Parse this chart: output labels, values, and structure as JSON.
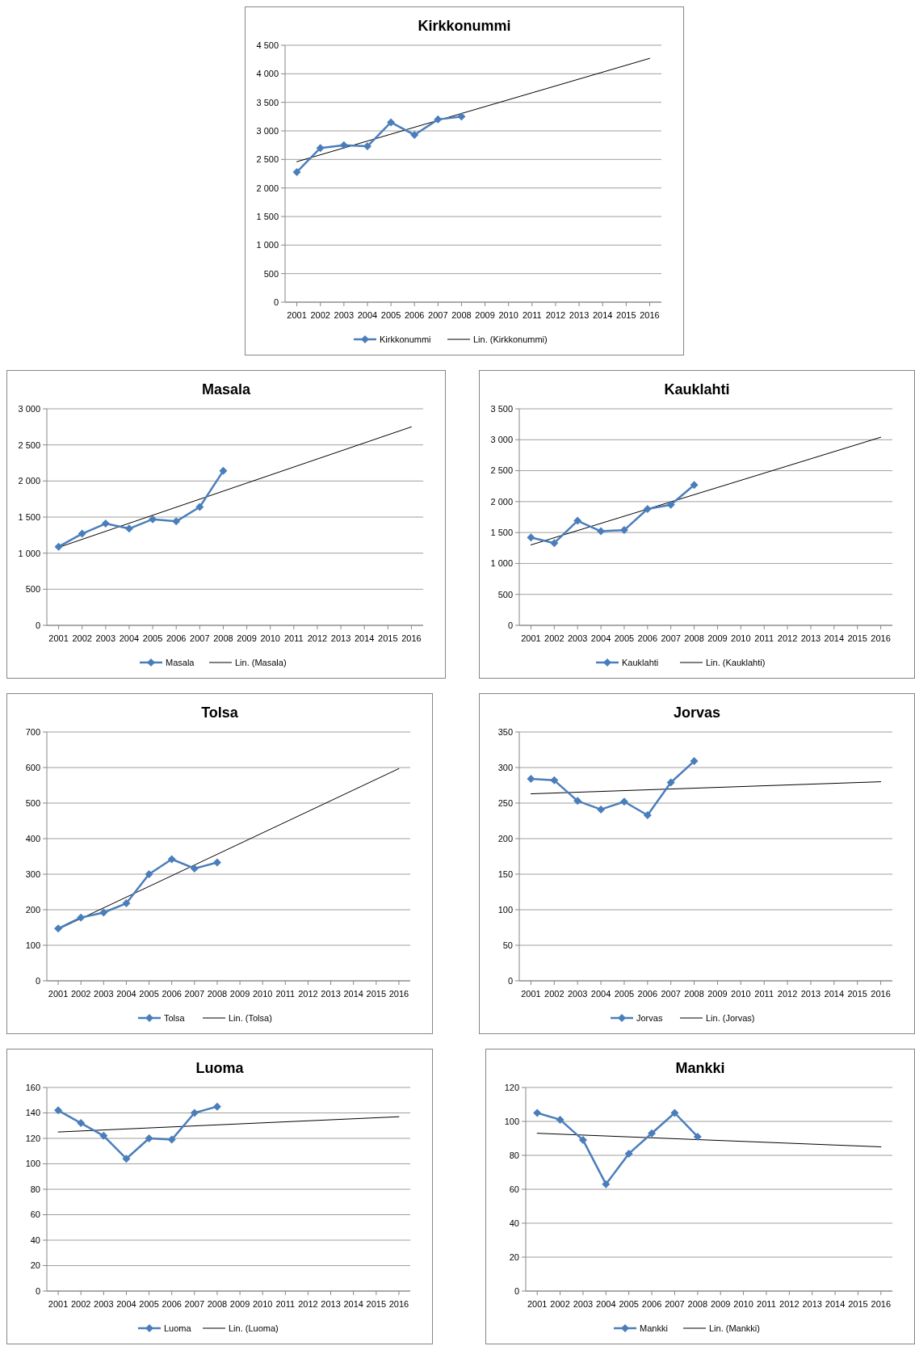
{
  "chart_data": [
    {
      "type": "line",
      "title": "Kirkkonummi",
      "xlim": [
        2000.5,
        2016.5
      ],
      "xticks": [
        2001,
        2002,
        2003,
        2004,
        2005,
        2006,
        2007,
        2008,
        2009,
        2010,
        2011,
        2012,
        2013,
        2014,
        2015,
        2016
      ],
      "ylim": [
        0,
        4500
      ],
      "yticks": [
        0,
        500,
        {
          "value": 1000,
          "label": "1 000"
        },
        {
          "value": 1500,
          "label": "1 500"
        },
        {
          "value": 2000,
          "label": "2 000"
        },
        {
          "value": 2500,
          "label": "2 500"
        },
        {
          "value": 3000,
          "label": "3 000"
        },
        {
          "value": 3500,
          "label": "3 500"
        },
        {
          "value": 4000,
          "label": "4 000"
        },
        {
          "value": 4500,
          "label": "4 500"
        }
      ],
      "grid": "y",
      "legend": "bottom",
      "series": [
        {
          "name": "Kirkkonummi",
          "color": "#4a7ebb",
          "marker": "diamond",
          "x": [
            2001,
            2002,
            2003,
            2004,
            2005,
            2006,
            2007,
            2008
          ],
          "values": [
            2280,
            2700,
            2750,
            2730,
            3150,
            2930,
            3200,
            3250
          ]
        },
        {
          "name": "Lin. (Kirkkonummi)",
          "color": "#000000",
          "marker": "none",
          "x": [
            2001,
            2016
          ],
          "values": [
            2460,
            4270
          ]
        }
      ]
    },
    {
      "type": "line",
      "title": "Masala",
      "xlim": [
        2000.5,
        2016.5
      ],
      "xticks": [
        2001,
        2002,
        2003,
        2004,
        2005,
        2006,
        2007,
        2008,
        2009,
        2010,
        2011,
        2012,
        2013,
        2014,
        2015,
        2016
      ],
      "ylim": [
        0,
        3000
      ],
      "yticks": [
        0,
        500,
        {
          "value": 1000,
          "label": "1 000"
        },
        {
          "value": 1500,
          "label": "1 500"
        },
        {
          "value": 2000,
          "label": "2 000"
        },
        {
          "value": 2500,
          "label": "2 500"
        },
        {
          "value": 3000,
          "label": "3 000"
        }
      ],
      "grid": "y",
      "legend": "bottom",
      "series": [
        {
          "name": "Masala",
          "color": "#4a7ebb",
          "marker": "diamond",
          "x": [
            2001,
            2002,
            2003,
            2004,
            2005,
            2006,
            2007,
            2008
          ],
          "values": [
            1090,
            1270,
            1410,
            1340,
            1470,
            1440,
            1640,
            2140
          ]
        },
        {
          "name": "Lin. (Masala)",
          "color": "#000000",
          "marker": "none",
          "x": [
            2001,
            2016
          ],
          "values": [
            1080,
            2750
          ]
        }
      ]
    },
    {
      "type": "line",
      "title": "Kauklahti",
      "xlim": [
        2000.5,
        2016.5
      ],
      "xticks": [
        2001,
        2002,
        2003,
        2004,
        2005,
        2006,
        2007,
        2008,
        2009,
        2010,
        2011,
        2012,
        2013,
        2014,
        2015,
        2016
      ],
      "ylim": [
        0,
        3500
      ],
      "yticks": [
        0,
        500,
        {
          "value": 1000,
          "label": "1 000"
        },
        {
          "value": 1500,
          "label": "1 500"
        },
        {
          "value": 2000,
          "label": "2 000"
        },
        {
          "value": 2500,
          "label": "2 500"
        },
        {
          "value": 3000,
          "label": "3 000"
        },
        {
          "value": 3500,
          "label": "3 500"
        }
      ],
      "grid": "y",
      "legend": "bottom",
      "series": [
        {
          "name": "Kauklahti",
          "color": "#4a7ebb",
          "marker": "diamond",
          "x": [
            2001,
            2002,
            2003,
            2004,
            2005,
            2006,
            2007,
            2008
          ],
          "values": [
            1420,
            1330,
            1690,
            1520,
            1540,
            1880,
            1950,
            2270
          ]
        },
        {
          "name": "Lin. (Kauklahti)",
          "color": "#000000",
          "marker": "none",
          "x": [
            2001,
            2016
          ],
          "values": [
            1300,
            3040
          ]
        }
      ]
    },
    {
      "type": "line",
      "title": "Tolsa",
      "xlim": [
        2000.5,
        2016.5
      ],
      "xticks": [
        2001,
        2002,
        2003,
        2004,
        2005,
        2006,
        2007,
        2008,
        2009,
        2010,
        2011,
        2012,
        2013,
        2014,
        2015,
        2016
      ],
      "ylim": [
        0,
        700
      ],
      "yticks": [
        0,
        100,
        200,
        300,
        400,
        500,
        600,
        700
      ],
      "grid": "y",
      "legend": "bottom",
      "series": [
        {
          "name": "Tolsa",
          "color": "#4a7ebb",
          "marker": "diamond",
          "x": [
            2001,
            2002,
            2003,
            2004,
            2005,
            2006,
            2007,
            2008
          ],
          "values": [
            147,
            178,
            192,
            218,
            300,
            342,
            316,
            333
          ]
        },
        {
          "name": "Lin. (Tolsa)",
          "color": "#000000",
          "marker": "none",
          "x": [
            2001,
            2016
          ],
          "values": [
            145,
            597
          ]
        }
      ]
    },
    {
      "type": "line",
      "title": "Jorvas",
      "xlim": [
        2000.5,
        2016.5
      ],
      "xticks": [
        2001,
        2002,
        2003,
        2004,
        2005,
        2006,
        2007,
        2008,
        2009,
        2010,
        2011,
        2012,
        2013,
        2014,
        2015,
        2016
      ],
      "ylim": [
        0,
        350
      ],
      "yticks": [
        0,
        50,
        100,
        150,
        200,
        250,
        300,
        350
      ],
      "grid": "y",
      "legend": "bottom",
      "series": [
        {
          "name": "Jorvas",
          "color": "#4a7ebb",
          "marker": "diamond",
          "x": [
            2001,
            2002,
            2003,
            2004,
            2005,
            2006,
            2007,
            2008
          ],
          "values": [
            284,
            282,
            253,
            241,
            252,
            233,
            279,
            309
          ]
        },
        {
          "name": "Lin. (Jorvas)",
          "color": "#000000",
          "marker": "none",
          "x": [
            2001,
            2016
          ],
          "values": [
            263,
            280
          ]
        }
      ]
    },
    {
      "type": "line",
      "title": "Luoma",
      "xlim": [
        2000.5,
        2016.5
      ],
      "xticks": [
        2001,
        2002,
        2003,
        2004,
        2005,
        2006,
        2007,
        2008,
        2009,
        2010,
        2011,
        2012,
        2013,
        2014,
        2015,
        2016
      ],
      "ylim": [
        0,
        160
      ],
      "yticks": [
        0,
        20,
        40,
        60,
        80,
        100,
        120,
        140,
        160
      ],
      "grid": "y",
      "legend": "bottom",
      "series": [
        {
          "name": "Luoma",
          "color": "#4a7ebb",
          "marker": "diamond",
          "x": [
            2001,
            2002,
            2003,
            2004,
            2005,
            2006,
            2007,
            2008
          ],
          "values": [
            142,
            132,
            122,
            104,
            120,
            119,
            140,
            145
          ]
        },
        {
          "name": "Lin. (Luoma)",
          "color": "#000000",
          "marker": "none",
          "x": [
            2001,
            2016
          ],
          "values": [
            125,
            137
          ]
        }
      ]
    },
    {
      "type": "line",
      "title": "Mankki",
      "xlim": [
        2000.5,
        2016.5
      ],
      "xticks": [
        2001,
        2002,
        2003,
        2004,
        2005,
        2006,
        2007,
        2008,
        2009,
        2010,
        2011,
        2012,
        2013,
        2014,
        2015,
        2016
      ],
      "ylim": [
        0,
        120
      ],
      "yticks": [
        0,
        20,
        40,
        60,
        80,
        100,
        120
      ],
      "grid": "y",
      "legend": "bottom",
      "series": [
        {
          "name": "Mankki",
          "color": "#4a7ebb",
          "marker": "diamond",
          "x": [
            2001,
            2002,
            2003,
            2004,
            2005,
            2006,
            2007,
            2008
          ],
          "values": [
            105,
            101,
            89,
            63,
            81,
            93,
            105,
            91
          ]
        },
        {
          "name": "Lin. (Mankki)",
          "color": "#000000",
          "marker": "none",
          "x": [
            2001,
            2016
          ],
          "values": [
            93,
            85
          ]
        }
      ]
    }
  ]
}
